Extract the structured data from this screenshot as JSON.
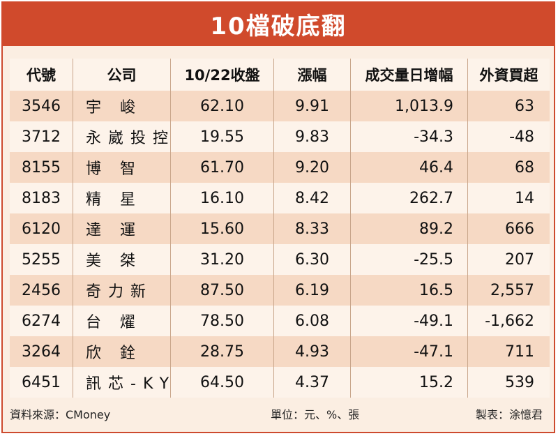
{
  "title": "10檔破底翻",
  "columns": [
    "代號",
    "公司",
    "10/22收盤",
    "漲幅",
    "成交量日增幅",
    "外資買超"
  ],
  "rows": [
    {
      "code": "3546",
      "company": "宇 峻",
      "close": "62.10",
      "change": "9.91",
      "volume_increase": "1,013.9",
      "foreign_buy": "63"
    },
    {
      "code": "3712",
      "company": "永崴投控",
      "close": "19.55",
      "change": "9.83",
      "volume_increase": "-34.3",
      "foreign_buy": "-48"
    },
    {
      "code": "8155",
      "company": "博 智",
      "close": "61.70",
      "change": "9.20",
      "volume_increase": "46.4",
      "foreign_buy": "68"
    },
    {
      "code": "8183",
      "company": "精 星",
      "close": "16.10",
      "change": "8.42",
      "volume_increase": "262.7",
      "foreign_buy": "14"
    },
    {
      "code": "6120",
      "company": "達 運",
      "close": "15.60",
      "change": "8.33",
      "volume_increase": "89.2",
      "foreign_buy": "666"
    },
    {
      "code": "5255",
      "company": "美 桀",
      "close": "31.20",
      "change": "6.30",
      "volume_increase": "-25.5",
      "foreign_buy": "207"
    },
    {
      "code": "2456",
      "company": "奇力新",
      "close": "87.50",
      "change": "6.19",
      "volume_increase": "16.5",
      "foreign_buy": "2,557"
    },
    {
      "code": "6274",
      "company": "台 燿",
      "close": "78.50",
      "change": "6.08",
      "volume_increase": "-49.1",
      "foreign_buy": "-1,662"
    },
    {
      "code": "3264",
      "company": "欣 銓",
      "close": "28.75",
      "change": "4.93",
      "volume_increase": "-47.1",
      "foreign_buy": "711"
    },
    {
      "code": "6451",
      "company": "訊芯-KY",
      "close": "64.50",
      "change": "4.37",
      "volume_increase": "15.2",
      "foreign_buy": "539"
    }
  ],
  "footer": {
    "source": "資料來源：CMoney",
    "unit": "單位：元、%、張",
    "maker": "製表：涂憶君"
  },
  "colors": {
    "title_bg": "#d04a2c",
    "row_alt": "#f6d9c4",
    "row_plain": "#fdf3ea"
  }
}
